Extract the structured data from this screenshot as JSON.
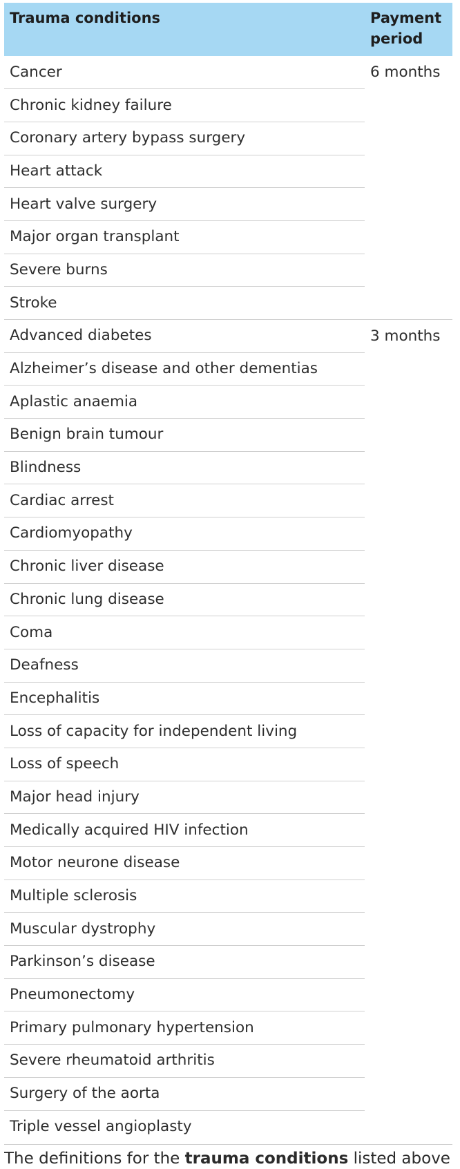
{
  "table": {
    "header_condition": "Trauma conditions",
    "header_period_line1": "Payment",
    "header_period_line2": "period",
    "groups": [
      {
        "period": "6 months",
        "conditions": [
          "Cancer",
          "Chronic kidney failure",
          "Coronary artery bypass surgery",
          "Heart attack",
          "Heart valve surgery",
          "Major organ transplant",
          "Severe burns",
          "Stroke"
        ]
      },
      {
        "period": "3 months",
        "conditions": [
          "Advanced diabetes",
          "Alzheimer’s disease and other dementias",
          "Aplastic anaemia",
          "Benign brain tumour",
          "Blindness",
          "Cardiac arrest",
          "Cardiomyopathy",
          "Chronic liver disease",
          "Chronic lung disease",
          "Coma",
          "Deafness",
          "Encephalitis",
          "Loss of capacity for independent living",
          "Loss of speech",
          "Major head injury",
          "Medically acquired HIV infection",
          "Motor neurone disease",
          "Multiple sclerosis",
          "Muscular dystrophy",
          "Parkinson’s disease",
          "Pneumonectomy",
          "Primary pulmonary hypertension",
          "Severe rheumatoid arthritis",
          "Surgery of the aorta",
          "Triple vessel angioplasty"
        ]
      }
    ]
  },
  "footnote": {
    "before": "The definitions for the ",
    "bold": "trauma conditions",
    "after": " listed above"
  },
  "colors": {
    "header_background": "#a6d8f3",
    "rule": "#cfcfcf",
    "text": "#2b2b2b"
  }
}
